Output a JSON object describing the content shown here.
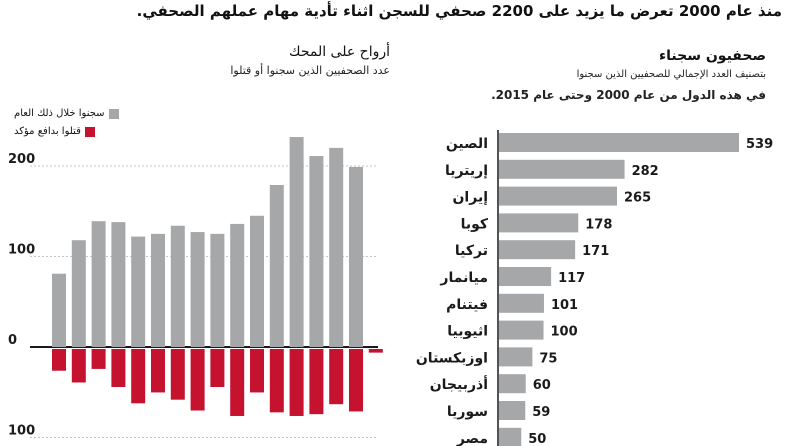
{
  "headline": "منذ عام 2000 تعرض ما يزيد على 2200 صحفي للسجن اثناء تأدية مهام عملهم الصحفي.",
  "left_panel": {
    "title": "أرواح على المحك",
    "subtitle": "عدد الصحفيين الذين سجنوا أو قتلوا"
  },
  "right_panel": {
    "title": "صحفيون سجناء",
    "subtitle_line1": "بتصنيف العدد الإجمالي للصحفيين الذين سجنوا",
    "subtitle_line2": "في هذه الدول من عام 2000 وحتى عام 2015."
  },
  "legend": {
    "jailed": "سجنوا خلال ذلك العام",
    "killed": "قتلوا بدافع مؤكد"
  },
  "colors": {
    "grey": "#a6a7a9",
    "red": "#c4122f",
    "dark": "#1a1a1a"
  },
  "chart_data": [
    {
      "type": "bar",
      "ylim": [
        -100,
        250
      ],
      "yticks": [
        -100,
        0,
        100,
        200
      ],
      "ytick_labels": [
        "100",
        "0",
        "100",
        "200"
      ],
      "series": [
        {
          "name": "سجنوا خلال ذلك العام",
          "values": [
            81,
            118,
            139,
            138,
            122,
            125,
            134,
            127,
            125,
            136,
            145,
            179,
            232,
            211,
            220,
            199,
            0
          ]
        },
        {
          "name": "قتلوا بدافع مؤكد",
          "values": [
            24,
            37,
            22,
            42,
            60,
            48,
            56,
            68,
            42,
            74,
            48,
            70,
            74,
            72,
            61,
            69,
            4
          ]
        }
      ]
    },
    {
      "type": "bar",
      "orientation": "horizontal",
      "categories": [
        "الصين",
        "إريتريا",
        "إيران",
        "كوبا",
        "تركيا",
        "ميانمار",
        "فيتنام",
        "اثيوبيا",
        "اوزبكستان",
        "أذربيجان",
        "سوريا",
        "مصر"
      ],
      "values": [
        539,
        282,
        265,
        178,
        171,
        117,
        101,
        100,
        75,
        60,
        59,
        50
      ],
      "xlim": [
        0,
        539
      ]
    }
  ]
}
